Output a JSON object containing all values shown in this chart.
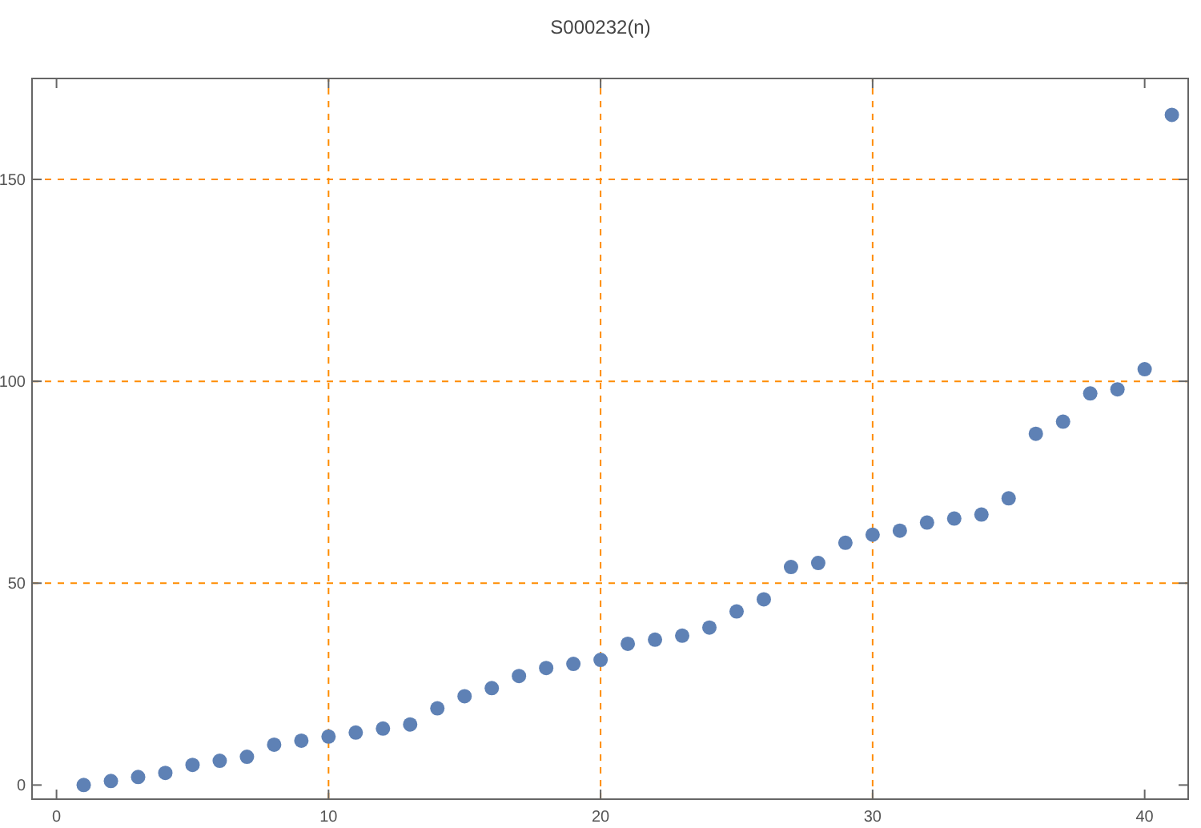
{
  "chart_data": {
    "type": "scatter",
    "title": "S000232(n)",
    "x": [
      1,
      2,
      3,
      4,
      5,
      6,
      7,
      8,
      9,
      10,
      11,
      12,
      13,
      14,
      15,
      16,
      17,
      18,
      19,
      20,
      21,
      22,
      23,
      24,
      25,
      26,
      27,
      28,
      29,
      30,
      31,
      32,
      33,
      34,
      35,
      36,
      37,
      38,
      39,
      40,
      41
    ],
    "series": [
      {
        "color": "#5e81b5",
        "values": [
          0,
          1,
          2,
          3,
          5,
          6,
          7,
          10,
          11,
          12,
          13,
          14,
          15,
          19,
          22,
          24,
          27,
          29,
          30,
          31,
          35,
          36,
          37,
          39,
          43,
          46,
          54,
          55,
          60,
          62,
          63,
          65,
          66,
          67,
          71,
          87,
          90,
          97,
          98,
          103,
          166
        ]
      }
    ],
    "xlim": [
      -0.9,
      41.6
    ],
    "ylim": [
      -3.5,
      175
    ],
    "xticks": [
      0,
      10,
      20,
      30,
      40
    ],
    "yticks": [
      0,
      50,
      100,
      150
    ],
    "marker": "circle",
    "grid": false,
    "ref_lines": [
      {
        "axis": "x",
        "value": 10,
        "color": "#ff8c00",
        "line_style": "dashed"
      },
      {
        "axis": "x",
        "value": 20,
        "color": "#ff8c00",
        "line_style": "dashed"
      },
      {
        "axis": "x",
        "value": 30,
        "color": "#ff8c00",
        "line_style": "dashed"
      },
      {
        "axis": "y",
        "value": 50,
        "color": "#ff8c00",
        "line_style": "dashed"
      },
      {
        "axis": "y",
        "value": 100,
        "color": "#ff8c00",
        "line_style": "dashed"
      },
      {
        "axis": "y",
        "value": 150,
        "color": "#ff8c00",
        "line_style": "dashed"
      }
    ]
  }
}
